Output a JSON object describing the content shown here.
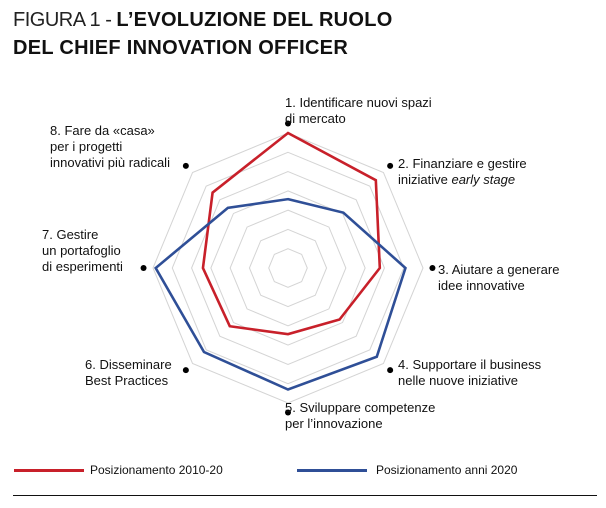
{
  "title": {
    "prefix": "FIGURA 1 - ",
    "line1": "L’EVOLUZIONE DEL RUOLO",
    "line2": "DEL CHIEF INNOVATION OFFICER"
  },
  "chart_data": {
    "type": "radar",
    "title": "FIGURA 1 - L’EVOLUZIONE DEL RUOLO DEL CHIEF INNOVATION OFFICER",
    "scale": [
      0,
      1
    ],
    "grid_rings": 7,
    "axes": [
      {
        "lines": [
          "1. Identificare nuovi spazi",
          "di mercato"
        ]
      },
      {
        "lines": [
          "2. Finanziare e gestire"
        ],
        "line2_plain": "iniziative ",
        "line2_italic": "early stage"
      },
      {
        "lines": [
          "3. Aiutare a generare",
          "idee innovative"
        ]
      },
      {
        "lines": [
          "4. Supportare il business",
          "nelle nuove iniziative"
        ]
      },
      {
        "lines": [
          "5. Sviluppare competenze",
          "per l’innovazione"
        ]
      },
      {
        "lines": [
          "6. Disseminare",
          "Best Practices"
        ]
      },
      {
        "lines": [
          "7. Gestire",
          "un portafoglio",
          "di esperimenti"
        ]
      },
      {
        "lines": [
          "8. Fare da «casa»",
          "per i progetti",
          "innovativi più radicali"
        ]
      }
    ],
    "series": [
      {
        "name": "Posizionamento 2010-20",
        "color": "#c8202a",
        "values": [
          1.0,
          0.92,
          0.68,
          0.54,
          0.49,
          0.61,
          0.63,
          0.79
        ]
      },
      {
        "name": "Posizionamento anni 2020",
        "color": "#2f4f97",
        "values": [
          0.51,
          0.58,
          0.87,
          0.93,
          0.9,
          0.88,
          0.98,
          0.63
        ]
      }
    ],
    "legend": "bottom"
  }
}
